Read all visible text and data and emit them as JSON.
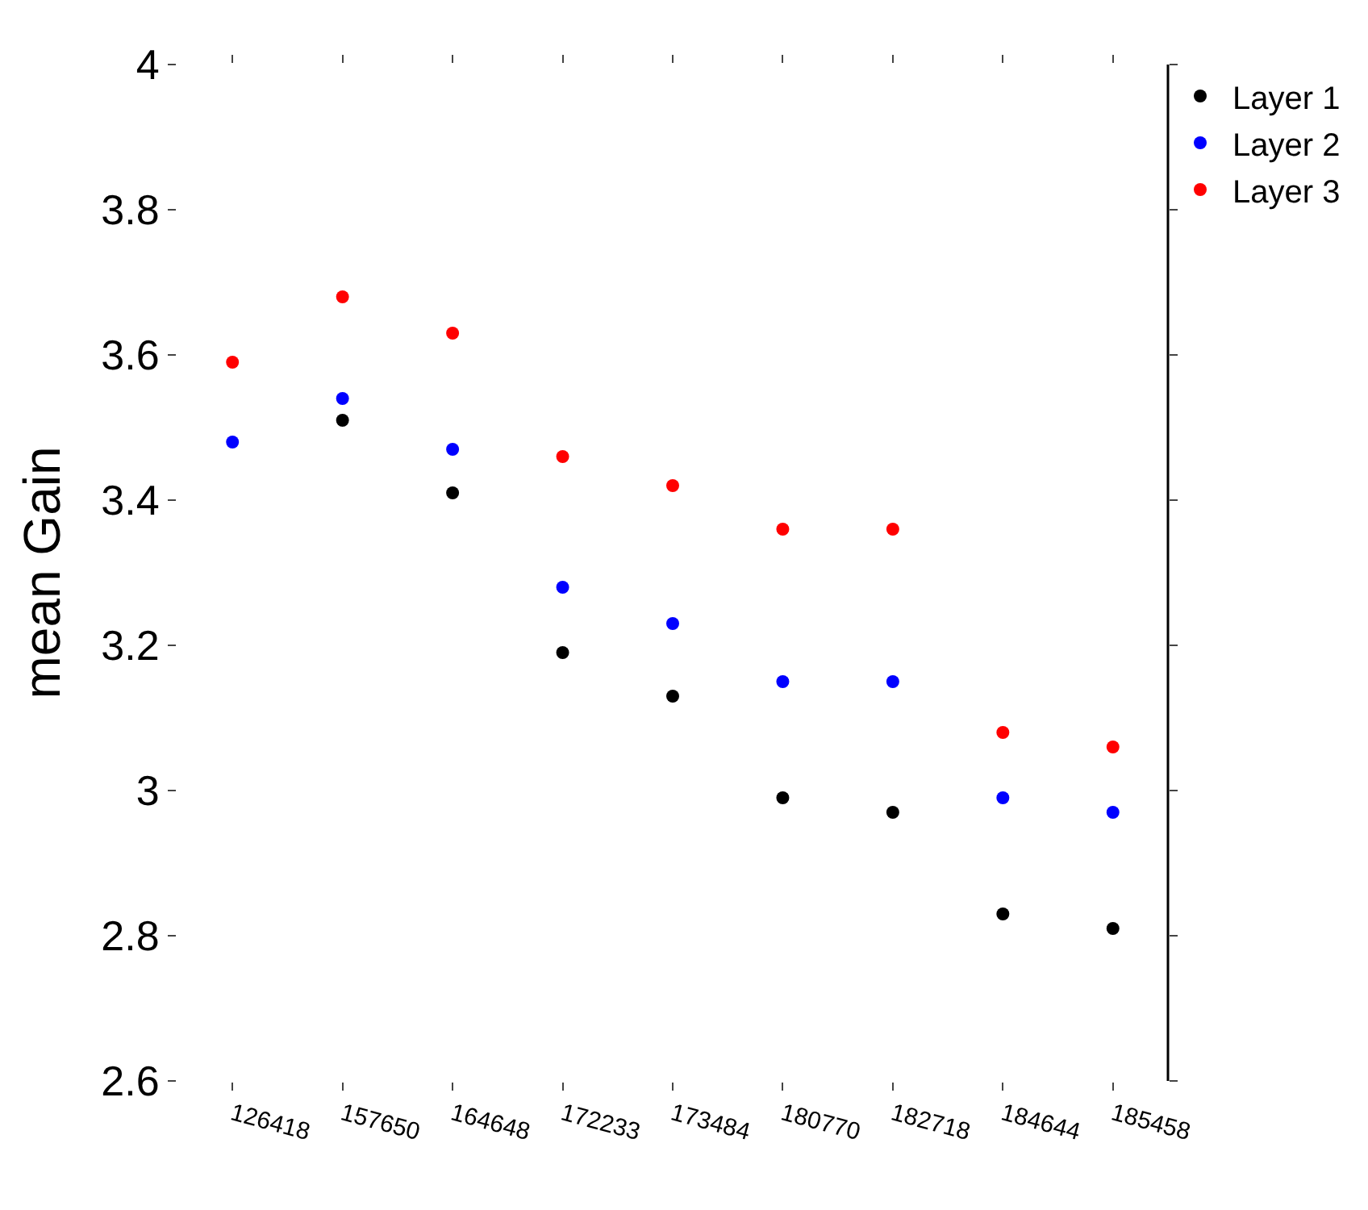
{
  "chart_data": {
    "type": "scatter",
    "ylabel": "mean Gain",
    "categories": [
      "126418",
      "157650",
      "164648",
      "172233",
      "173484",
      "180770",
      "182718",
      "184644",
      "185458"
    ],
    "series": [
      {
        "name": "Layer 1",
        "color": "#000000",
        "values": [
          null,
          3.51,
          3.41,
          3.19,
          3.13,
          2.99,
          2.97,
          2.83,
          2.81
        ]
      },
      {
        "name": "Layer 2",
        "color": "#0000ff",
        "values": [
          3.48,
          3.54,
          3.47,
          3.28,
          3.23,
          3.15,
          3.15,
          2.99,
          2.97
        ]
      },
      {
        "name": "Layer 3",
        "color": "#ff0000",
        "values": [
          3.59,
          3.68,
          3.63,
          3.46,
          3.42,
          3.36,
          3.36,
          3.08,
          3.06
        ]
      }
    ],
    "ylim": [
      2.6,
      4
    ],
    "yticks": [
      2.6,
      2.8,
      3,
      3.2,
      3.4,
      3.6,
      3.8,
      4
    ],
    "marker": "circle",
    "legend": "top right"
  }
}
